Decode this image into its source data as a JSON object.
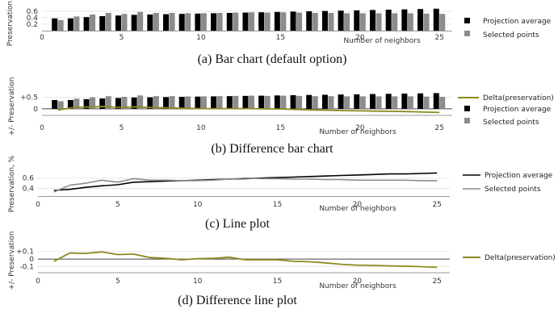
{
  "colors": {
    "projection": "#000000",
    "selected": "#8c8c8c",
    "delta": "#8a8a1e",
    "axis": "#777777"
  },
  "chart_data": [
    {
      "id": "a",
      "type": "bar",
      "caption": "(a) Bar chart (default option)",
      "xlabel": "Number of neighbors",
      "ylabel": "Preservation, %",
      "x": [
        1,
        2,
        3,
        4,
        5,
        6,
        7,
        8,
        9,
        10,
        11,
        12,
        13,
        14,
        15,
        16,
        17,
        18,
        19,
        20,
        21,
        22,
        23,
        24,
        25
      ],
      "xlim": [
        0,
        25.8
      ],
      "xticks": [
        0,
        5,
        10,
        15,
        20,
        25
      ],
      "ylim": [
        0,
        0.75
      ],
      "yticks": [
        0.2,
        0.4,
        0.6
      ],
      "ytick_labels": [
        "0.2",
        "0.4",
        "0.6"
      ],
      "legend_position": "right",
      "series": [
        {
          "name": "Projection average",
          "kind": "bar",
          "color_key": "projection",
          "values": [
            0.38,
            0.38,
            0.42,
            0.45,
            0.47,
            0.49,
            0.5,
            0.51,
            0.52,
            0.53,
            0.54,
            0.55,
            0.56,
            0.57,
            0.58,
            0.59,
            0.6,
            0.61,
            0.62,
            0.63,
            0.64,
            0.65,
            0.66,
            0.67,
            0.68
          ]
        },
        {
          "name": "Selected points",
          "kind": "bar",
          "color_key": "selected",
          "values": [
            0.33,
            0.44,
            0.5,
            0.55,
            0.52,
            0.58,
            0.55,
            0.55,
            0.54,
            0.54,
            0.55,
            0.56,
            0.57,
            0.56,
            0.57,
            0.56,
            0.55,
            0.55,
            0.54,
            0.54,
            0.54,
            0.54,
            0.54,
            0.53,
            0.52
          ]
        }
      ]
    },
    {
      "id": "b",
      "type": "bar",
      "caption": "(b) Difference bar chart",
      "xlabel": "Number of neighbors",
      "ylabel": "+/- Preservation",
      "x": [
        1,
        2,
        3,
        4,
        5,
        6,
        7,
        8,
        9,
        10,
        11,
        12,
        13,
        14,
        15,
        16,
        17,
        18,
        19,
        20,
        21,
        22,
        23,
        24,
        25
      ],
      "xlim": [
        0,
        25.8
      ],
      "xticks": [
        0,
        5,
        10,
        15,
        20,
        25
      ],
      "ylim": [
        -0.25,
        1.15
      ],
      "yticks": [
        0,
        0.5
      ],
      "ytick_labels": [
        "0",
        "+0.5"
      ],
      "legend_position": "right",
      "series": [
        {
          "name": "Delta(preservation)",
          "kind": "line",
          "color_key": "delta",
          "values": [
            -0.05,
            0.06,
            0.08,
            0.1,
            0.05,
            0.09,
            0.05,
            0.04,
            0.02,
            0.01,
            0.01,
            0.01,
            0.01,
            0.0,
            -0.01,
            -0.03,
            -0.05,
            -0.06,
            -0.08,
            -0.09,
            -0.1,
            -0.11,
            -0.12,
            -0.14,
            -0.16
          ]
        },
        {
          "name": "Projection average",
          "kind": "bar",
          "color_key": "projection",
          "values": [
            0.38,
            0.38,
            0.42,
            0.45,
            0.47,
            0.49,
            0.5,
            0.51,
            0.52,
            0.53,
            0.54,
            0.55,
            0.56,
            0.57,
            0.58,
            0.59,
            0.6,
            0.61,
            0.62,
            0.63,
            0.64,
            0.65,
            0.66,
            0.67,
            0.68
          ]
        },
        {
          "name": "Selected points",
          "kind": "bar",
          "color_key": "selected",
          "values": [
            0.33,
            0.44,
            0.5,
            0.55,
            0.52,
            0.58,
            0.55,
            0.55,
            0.54,
            0.54,
            0.55,
            0.56,
            0.57,
            0.56,
            0.57,
            0.56,
            0.55,
            0.55,
            0.54,
            0.54,
            0.54,
            0.54,
            0.54,
            0.53,
            0.52
          ]
        }
      ]
    },
    {
      "id": "c",
      "type": "line",
      "caption": "(c) Line plot",
      "xlabel": "Number of neighbors",
      "ylabel": "Preservation, %",
      "x": [
        1,
        2,
        3,
        4,
        5,
        6,
        7,
        8,
        9,
        10,
        11,
        12,
        13,
        14,
        15,
        16,
        17,
        18,
        19,
        20,
        21,
        22,
        23,
        24,
        25
      ],
      "xlim": [
        0,
        25.8
      ],
      "xticks": [
        0,
        5,
        10,
        15,
        20,
        25
      ],
      "ylim": [
        0.25,
        0.8
      ],
      "yticks": [
        0.4,
        0.6
      ],
      "ytick_labels": [
        "0.4",
        "0.6"
      ],
      "legend_position": "right",
      "series": [
        {
          "name": "Projection average",
          "kind": "line",
          "color_key": "projection",
          "values": [
            0.36,
            0.38,
            0.42,
            0.45,
            0.47,
            0.52,
            0.53,
            0.54,
            0.55,
            0.56,
            0.57,
            0.58,
            0.59,
            0.6,
            0.61,
            0.62,
            0.63,
            0.64,
            0.65,
            0.66,
            0.67,
            0.68,
            0.68,
            0.69,
            0.7
          ]
        },
        {
          "name": "Selected points",
          "kind": "line",
          "color_key": "selected",
          "values": [
            0.33,
            0.46,
            0.5,
            0.56,
            0.52,
            0.59,
            0.56,
            0.56,
            0.55,
            0.55,
            0.56,
            0.58,
            0.6,
            0.59,
            0.59,
            0.58,
            0.58,
            0.57,
            0.57,
            0.56,
            0.56,
            0.56,
            0.56,
            0.55,
            0.55
          ]
        }
      ]
    },
    {
      "id": "d",
      "type": "line",
      "caption": "(d) Difference line plot",
      "xlabel": "Number of neighbors",
      "ylabel": "+/- Preservation",
      "x": [
        1,
        2,
        3,
        4,
        5,
        6,
        7,
        8,
        9,
        10,
        11,
        12,
        13,
        14,
        15,
        16,
        17,
        18,
        19,
        20,
        21,
        22,
        23,
        24,
        25
      ],
      "xlim": [
        0,
        25.8
      ],
      "xticks": [
        0,
        5,
        10,
        15,
        20,
        25
      ],
      "ylim": [
        -0.17,
        0.14
      ],
      "yticks": [
        -0.1,
        0,
        0.1
      ],
      "ytick_labels": [
        "-0.1",
        "0",
        "+0.1"
      ],
      "legend_position": "right",
      "series": [
        {
          "name": "Delta(preservation)",
          "kind": "line",
          "color_key": "delta",
          "values": [
            -0.03,
            0.08,
            0.075,
            0.095,
            0.06,
            0.065,
            0.02,
            0.01,
            -0.01,
            0.005,
            0.01,
            0.025,
            -0.01,
            -0.01,
            -0.01,
            -0.03,
            -0.035,
            -0.05,
            -0.07,
            -0.08,
            -0.085,
            -0.09,
            -0.095,
            -0.1,
            -0.11
          ]
        }
      ]
    }
  ]
}
